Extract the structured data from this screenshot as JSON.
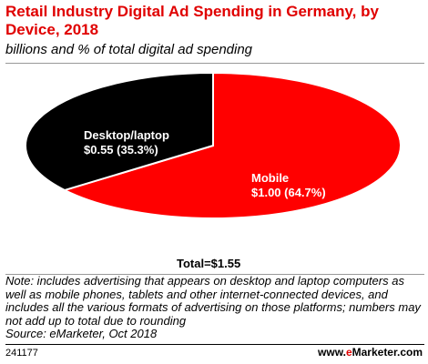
{
  "header": {
    "title": "Retail Industry Digital Ad Spending in Germany, by Device, 2018",
    "subtitle": "billions and % of total digital ad spending"
  },
  "chart_data": {
    "type": "pie",
    "unit": "billions",
    "slices": [
      {
        "label": "Mobile",
        "value": 1.0,
        "value_label": "$1.00 (64.7%)",
        "percent": 64.7,
        "color": "#ff0000"
      },
      {
        "label": "Desktop/laptop",
        "value": 0.55,
        "value_label": "$0.55 (35.3%)",
        "percent": 35.3,
        "color": "#000000"
      }
    ],
    "total_label": "Total=$1.55"
  },
  "footer": {
    "note": "Note: includes advertising that appears on desktop and laptop computers as well as mobile phones, tablets and other internet-connected devices, and includes all the various formats of advertising on those platforms; numbers may not add up to total due to rounding",
    "source": "Source: eMarketer, Oct 2018",
    "chart_id": "241177",
    "brand_prefix": "www.",
    "brand_accent": "e",
    "brand_suffix": "Marketer.com"
  }
}
